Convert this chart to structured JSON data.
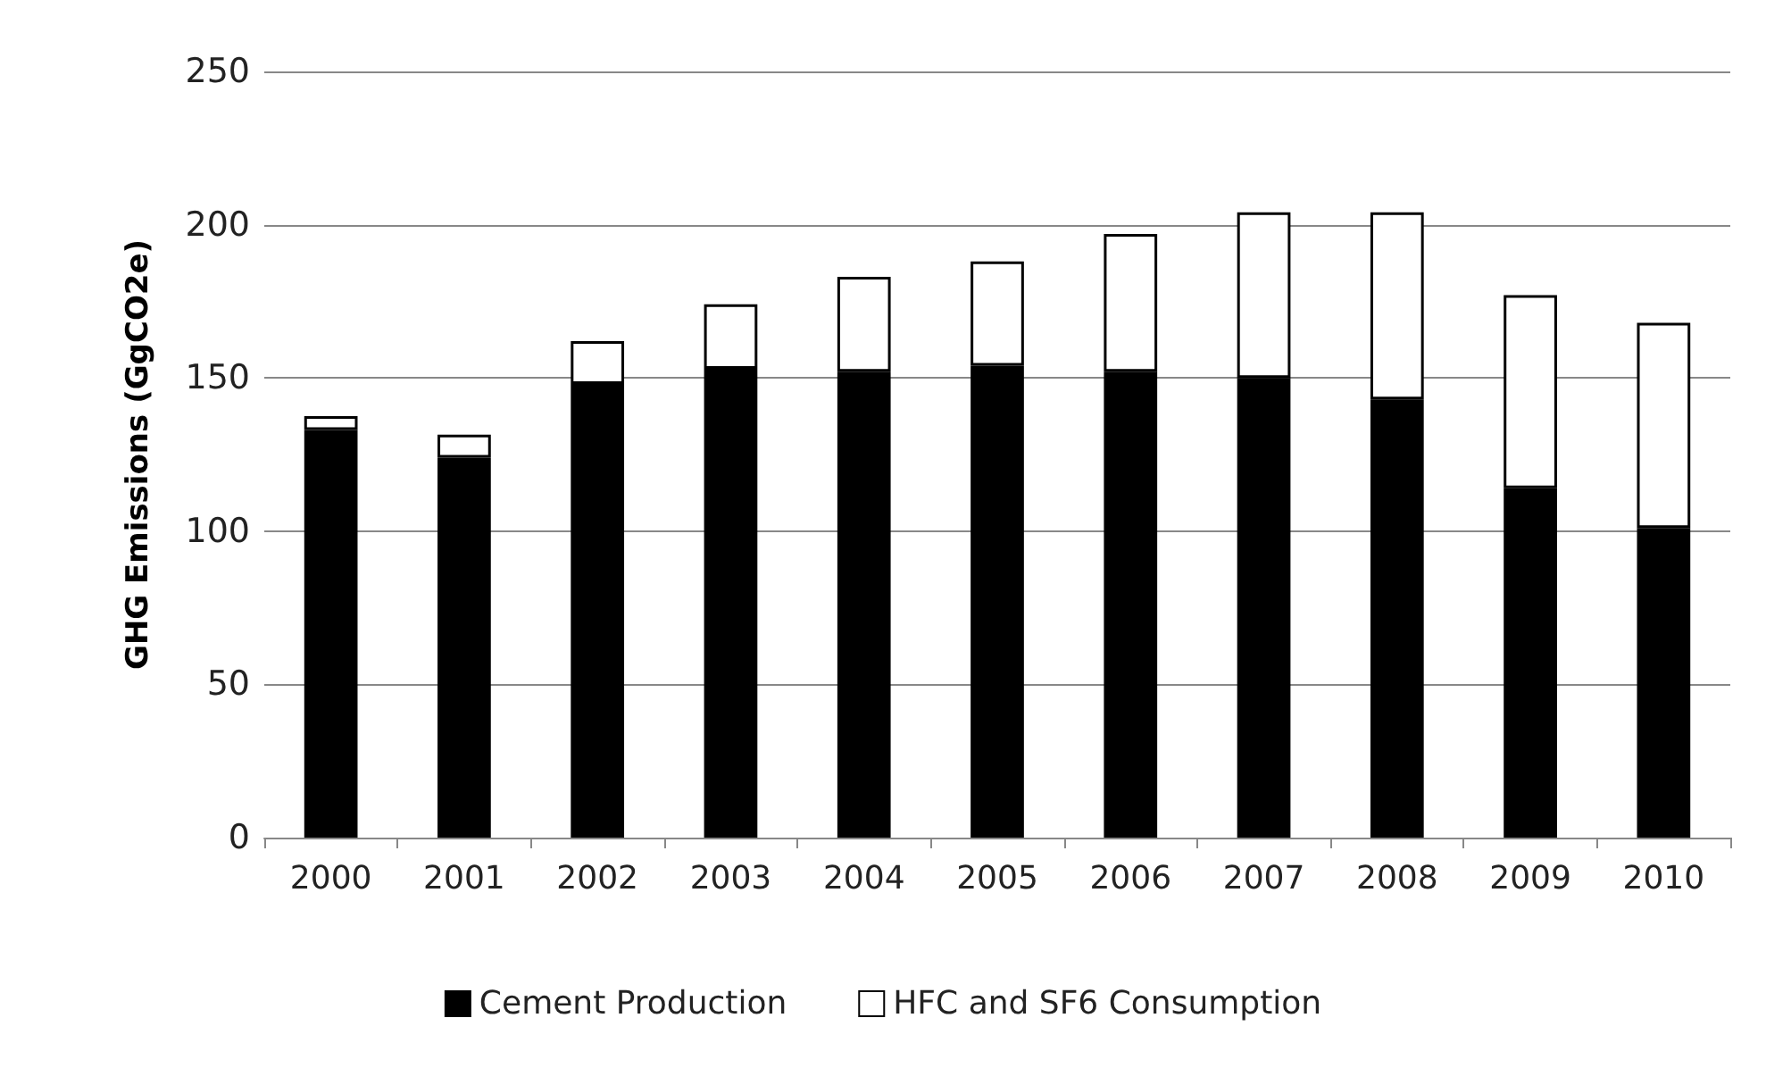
{
  "chart_data": {
    "type": "bar",
    "stacked": true,
    "ylabel": "GHG Emissions (GgCO2e)",
    "categories": [
      "2000",
      "2001",
      "2002",
      "2003",
      "2004",
      "2005",
      "2006",
      "2007",
      "2008",
      "2009",
      "2010"
    ],
    "series": [
      {
        "name": "Cement Production",
        "color": "#000000",
        "values": [
          133,
          124,
          148,
          153,
          152,
          154,
          152,
          150,
          143,
          114,
          101
        ]
      },
      {
        "name": "HFC and SF6 Consumption",
        "color": "#ffffff",
        "values": [
          4.5,
          7.5,
          14,
          21,
          31,
          34,
          45,
          54,
          61,
          63,
          67
        ]
      }
    ],
    "ylim": [
      0,
      250
    ],
    "yticks": [
      0,
      50,
      100,
      150,
      200,
      250
    ],
    "grid": "y",
    "legend": "bottom"
  }
}
